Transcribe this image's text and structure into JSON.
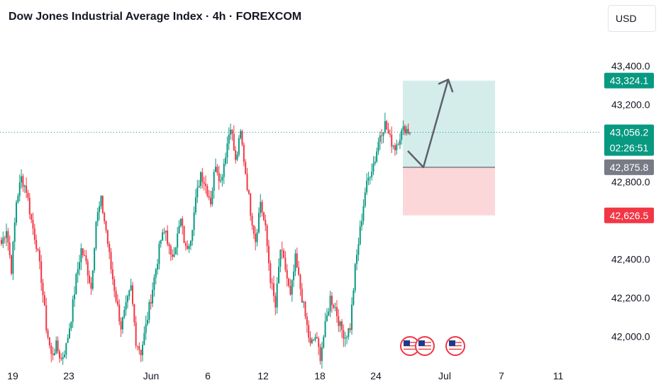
{
  "header": {
    "title": "Dow Jones Industrial Average Index · 4h · FOREXCOM",
    "currency_label": "USD"
  },
  "chart_data": {
    "type": "candlestick",
    "title": "Dow Jones Industrial Average Index · 4h · FOREXCOM",
    "currency": "USD",
    "y_ticks": [
      "43,400.0",
      "43,200.0",
      "42,800.0",
      "42,400.0",
      "42,200.0",
      "42,000.0"
    ],
    "y_tick_values": [
      43400,
      43200,
      42800,
      42400,
      42200,
      42000
    ],
    "x_ticks": [
      "19",
      "23",
      "Jun",
      "6",
      "12",
      "18",
      "24",
      "Jul",
      "7",
      "11"
    ],
    "ylim": [
      41900,
      43450
    ],
    "current_price": {
      "value": "43,056.2",
      "countdown": "02:26:51"
    },
    "position": {
      "entry": "42,875.8",
      "target": "43,324.1",
      "stop": "42,626.5"
    },
    "price_path": [
      42480,
      42560,
      42350,
      42700,
      42820,
      42760,
      42600,
      42480,
      42300,
      42050,
      41900,
      41950,
      41880,
      41950,
      42100,
      42300,
      42450,
      42380,
      42250,
      42600,
      42700,
      42550,
      42350,
      42200,
      42050,
      42150,
      42250,
      41980,
      41920,
      42050,
      42200,
      42350,
      42500,
      42550,
      42400,
      42480,
      42600,
      42450,
      42520,
      42700,
      42850,
      42780,
      42700,
      42900,
      42800,
      42950,
      43100,
      42900,
      43050,
      42850,
      42650,
      42500,
      42700,
      42550,
      42300,
      42150,
      42450,
      42350,
      42200,
      42400,
      42250,
      42100,
      41950,
      42000,
      41900,
      42050,
      42200,
      42150,
      42050,
      42000,
      42050,
      42350,
      42550,
      42750,
      42850,
      42920,
      43050,
      43100,
      43020,
      42980,
      43040,
      43080,
      43056
    ],
    "projection_arrow": [
      [
        42960,
        0
      ],
      [
        42875.8,
        1
      ],
      [
        43330,
        2
      ]
    ],
    "event_flags": 3
  }
}
